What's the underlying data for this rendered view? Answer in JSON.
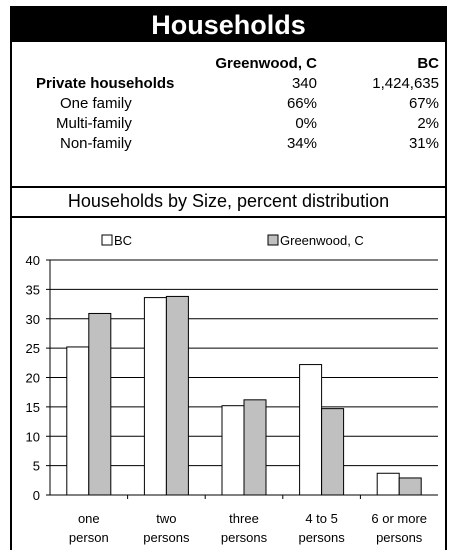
{
  "header": {
    "title": "Households"
  },
  "table": {
    "col_labels": [
      "Greenwood, C",
      "BC"
    ],
    "rows": [
      {
        "label": "Private households",
        "v1": "340",
        "v2": "1,424,635",
        "bold": true
      },
      {
        "label": "One family",
        "v1": "66%",
        "v2": "67%"
      },
      {
        "label": "Multi-family",
        "v1": "0%",
        "v2": "2%"
      },
      {
        "label": "Non-family",
        "v1": "34%",
        "v2": "31%"
      }
    ]
  },
  "chart_data": {
    "type": "bar",
    "title": "Households by Size, percent distribution",
    "categories": [
      [
        "one",
        "person"
      ],
      [
        "two",
        "persons"
      ],
      [
        "three",
        "persons"
      ],
      [
        "4 to 5",
        "persons"
      ],
      [
        "6 or  more",
        "persons"
      ]
    ],
    "series": [
      {
        "name": "BC",
        "color": "#ffffff",
        "values": [
          25.2,
          33.6,
          15.2,
          22.2,
          3.7
        ]
      },
      {
        "name": "Greenwood, C",
        "color": "#c0c0c0",
        "values": [
          30.9,
          33.8,
          16.2,
          14.7,
          2.9
        ]
      }
    ],
    "ylim": [
      0,
      40
    ],
    "yticks": [
      0,
      5,
      10,
      15,
      20,
      25,
      30,
      35,
      40
    ],
    "grid": true,
    "legend": "top"
  }
}
